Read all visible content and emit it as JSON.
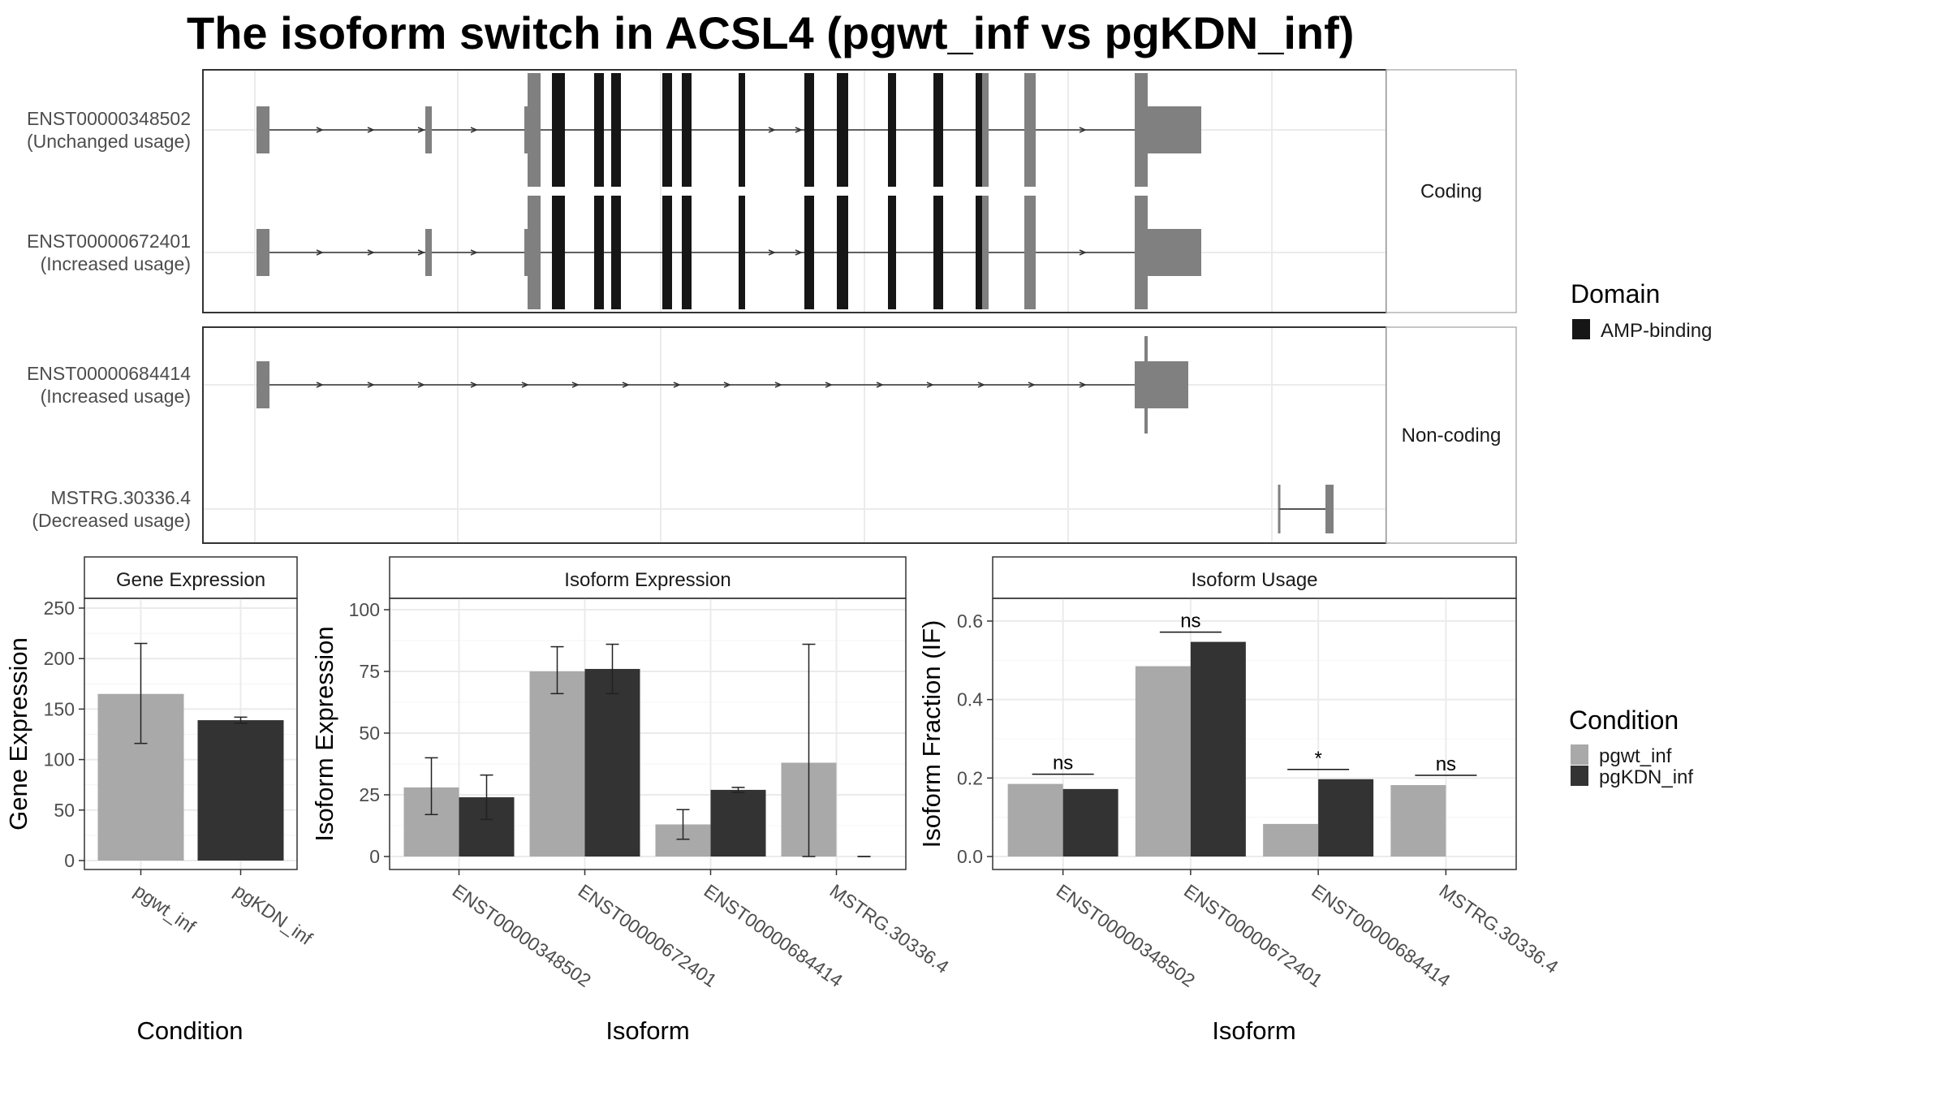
{
  "title": "The isoform switch in ACSL4 (pgwt_inf vs pgKDN_inf)",
  "colors": {
    "pgwt_inf": "#a9a9a9",
    "pgKDN_inf": "#333333",
    "exon": "#808080",
    "domain": "#161616"
  },
  "structure": {
    "facets": [
      "Coding",
      "Non-coding"
    ],
    "isoforms": [
      {
        "id": "ENST00000348502",
        "note": "(Unchanged usage)",
        "facet": "Coding",
        "coding": true
      },
      {
        "id": "ENST00000672401",
        "note": "(Increased usage)",
        "facet": "Coding",
        "coding": true
      },
      {
        "id": "ENST00000684414",
        "note": "(Increased usage)",
        "facet": "Non-coding",
        "coding": false
      },
      {
        "id": "MSTRG.30336.4",
        "note": "(Decreased usage)",
        "facet": "Non-coding",
        "coding": false
      }
    ]
  },
  "legend": {
    "domain": {
      "title": "Domain",
      "items": [
        "AMP-binding"
      ]
    },
    "condition": {
      "title": "Condition",
      "items": [
        "pgwt_inf",
        "pgKDN_inf"
      ]
    }
  },
  "chart_data": [
    {
      "type": "bar",
      "title": "Gene Expression",
      "xlabel": "Condition",
      "ylabel": "Gene Expression",
      "categories": [
        "pgwt_inf",
        "pgKDN_inf"
      ],
      "values": [
        165,
        139
      ],
      "error_low": [
        116,
        136
      ],
      "error_high": [
        215,
        142
      ],
      "ylim": [
        0,
        260
      ],
      "yticks": [
        0,
        50,
        100,
        150,
        200,
        250
      ]
    },
    {
      "type": "bar",
      "title": "Isoform Expression",
      "xlabel": "Isoform",
      "ylabel": "Isoform Expression",
      "categories": [
        "ENST00000348502",
        "ENST00000672401",
        "ENST00000684414",
        "MSTRG.30336.4"
      ],
      "series": [
        {
          "name": "pgwt_inf",
          "values": [
            28,
            75,
            13,
            38
          ],
          "error_low": [
            17,
            66,
            7,
            0
          ],
          "error_high": [
            40,
            85,
            19,
            86
          ]
        },
        {
          "name": "pgKDN_inf",
          "values": [
            24,
            76,
            27,
            0
          ],
          "error_low": [
            15,
            66,
            26,
            0
          ],
          "error_high": [
            33,
            86,
            28,
            0
          ]
        }
      ],
      "ylim": [
        0,
        105
      ],
      "yticks": [
        0,
        25,
        50,
        75,
        100
      ]
    },
    {
      "type": "bar",
      "title": "Isoform Usage",
      "xlabel": "Isoform",
      "ylabel": "Isoform Fraction (IF)",
      "categories": [
        "ENST00000348502",
        "ENST00000672401",
        "ENST00000684414",
        "MSTRG.30336.4"
      ],
      "series": [
        {
          "name": "pgwt_inf",
          "values": [
            0.185,
            0.485,
            0.083,
            0.182
          ]
        },
        {
          "name": "pgKDN_inf",
          "values": [
            0.172,
            0.547,
            0.197,
            0.0
          ]
        }
      ],
      "significance": [
        "ns",
        "ns",
        "*",
        "ns"
      ],
      "ylim": [
        0,
        0.66
      ],
      "yticks": [
        0.0,
        0.2,
        0.4,
        0.6
      ]
    }
  ]
}
